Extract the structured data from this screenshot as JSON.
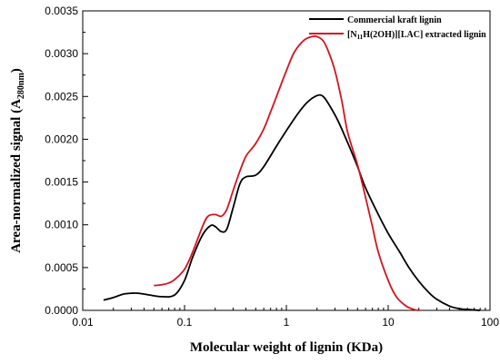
{
  "chart_data": {
    "type": "line",
    "xlabel": "Molecular weight of lignin (KDa)",
    "ylabel_main": "Area-normalized signal (A",
    "ylabel_sub": "280nm",
    "ylabel_close": ")",
    "x_scale": "log",
    "xlim": [
      0.01,
      100
    ],
    "ylim": [
      0,
      0.0035
    ],
    "x_ticks": [
      0.01,
      0.1,
      1,
      10,
      100
    ],
    "x_tick_labels": [
      "0.01",
      "0.1",
      "1",
      "10",
      "100"
    ],
    "y_ticks": [
      0,
      0.0005,
      0.001,
      0.0015,
      0.002,
      0.0025,
      0.003,
      0.0035
    ],
    "y_tick_labels": [
      "0.0000",
      "0.0005",
      "0.0010",
      "0.0015",
      "0.0020",
      "0.0025",
      "0.0030",
      "0.0035"
    ],
    "legend_position": "top-right",
    "series": [
      {
        "name": "Commercial kraft lignin",
        "color": "#000000",
        "x": [
          0.016,
          0.02,
          0.025,
          0.03,
          0.035,
          0.045,
          0.06,
          0.08,
          0.1,
          0.12,
          0.15,
          0.18,
          0.2,
          0.23,
          0.26,
          0.3,
          0.35,
          0.4,
          0.5,
          0.6,
          0.8,
          1.0,
          1.3,
          1.6,
          2.0,
          2.3,
          2.7,
          3.2,
          4.0,
          5.0,
          6.0,
          8.0,
          10,
          13,
          16,
          20,
          25,
          30,
          40,
          50,
          60,
          80
        ],
        "y": [
          0.00012,
          0.00015,
          0.00019,
          0.0002,
          0.0002,
          0.00018,
          0.00016,
          0.00018,
          0.00035,
          0.00062,
          0.00088,
          0.00099,
          0.00098,
          0.00092,
          0.00095,
          0.0012,
          0.00148,
          0.00156,
          0.00158,
          0.00168,
          0.00192,
          0.0021,
          0.0023,
          0.00243,
          0.00251,
          0.0025,
          0.00238,
          0.00222,
          0.00196,
          0.00168,
          0.00143,
          0.00112,
          0.0009,
          0.00068,
          0.0005,
          0.00034,
          0.00021,
          0.00013,
          5e-05,
          2e-05,
          1e-05,
          0.0
        ]
      },
      {
        "name": "[N11H(2OH)][LAC] extracted lignin",
        "name_parts": [
          "[N",
          "11",
          "H(2OH)][LAC] extracted lignin"
        ],
        "color": "#d4141e",
        "x": [
          0.05,
          0.06,
          0.07,
          0.08,
          0.1,
          0.12,
          0.15,
          0.17,
          0.2,
          0.23,
          0.26,
          0.3,
          0.35,
          0.4,
          0.45,
          0.5,
          0.6,
          0.7,
          0.8,
          1.0,
          1.2,
          1.5,
          1.8,
          2.0,
          2.3,
          2.6,
          3.0,
          3.5,
          4.0,
          5.0,
          6.0,
          7.0,
          8.0,
          10,
          12,
          15,
          18,
          20
        ],
        "y": [
          0.00029,
          0.0003,
          0.00032,
          0.00036,
          0.00048,
          0.00068,
          0.00098,
          0.0011,
          0.00112,
          0.0011,
          0.00118,
          0.0014,
          0.00163,
          0.0018,
          0.00188,
          0.00195,
          0.00212,
          0.00232,
          0.0025,
          0.0028,
          0.00302,
          0.00316,
          0.0032,
          0.0032,
          0.00315,
          0.00302,
          0.0028,
          0.00245,
          0.00208,
          0.0017,
          0.00132,
          0.00098,
          0.00068,
          0.00035,
          0.00016,
          5e-05,
          1e-05,
          0.0
        ]
      }
    ]
  }
}
